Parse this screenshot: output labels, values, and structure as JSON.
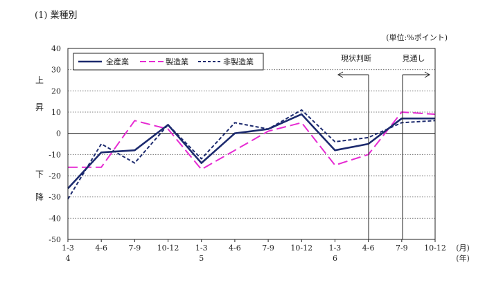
{
  "title": "(1) 業種別",
  "unit_note": "(単位:%ポイント)",
  "chart_data": {
    "type": "line",
    "categories": [
      "1-3",
      "4-6",
      "7-9",
      "10-12",
      "1-3",
      "4-6",
      "7-9",
      "10-12",
      "1-3",
      "4-6",
      "7-9",
      "10-12"
    ],
    "year_labels": [
      "4",
      "5",
      "6"
    ],
    "x_unit_labels": [
      "(月)",
      "(年)"
    ],
    "y_ticks": [
      "40",
      "30",
      "20",
      "10",
      "0",
      "-10",
      "-20",
      "-30",
      "-40",
      "-50"
    ],
    "ylim": [
      -50,
      40
    ],
    "side_labels": {
      "up_1": "上",
      "up_2": "昇",
      "down_1": "下",
      "down_2": "降"
    },
    "annotations": {
      "current": "現状判断",
      "outlook": "見通し"
    },
    "grid": "horizontal dotted",
    "legend_position": "top-left",
    "series": [
      {
        "name": "全産業",
        "style": "solid",
        "color": "#1c2a6e",
        "values": [
          -26,
          -9,
          -8,
          4,
          -14,
          0,
          2,
          9,
          -8,
          -5,
          7,
          7
        ]
      },
      {
        "name": "製造業",
        "style": "long-dash",
        "color": "#e62ad2",
        "values": [
          -16,
          -16,
          6,
          2,
          -17,
          -8,
          1,
          5,
          -15,
          -10,
          10,
          9
        ]
      },
      {
        "name": "非製造業",
        "style": "short-dash",
        "color": "#1c2a6e",
        "values": [
          -31,
          -5,
          -14,
          4,
          -12,
          5,
          2,
          11,
          -4,
          -2,
          5,
          6
        ]
      }
    ]
  }
}
